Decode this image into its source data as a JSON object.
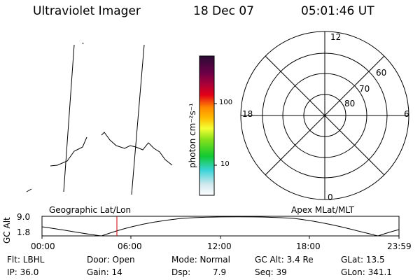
{
  "header": {
    "instrument": "Ultraviolet Imager",
    "date": "18 Dec 07",
    "time": "05:01:46 UT"
  },
  "colorbar": {
    "unit_label": "photon cm⁻²s⁻¹",
    "tick_100": "100",
    "tick_10": "10"
  },
  "polar": {
    "label_12": "12",
    "label_18": "18",
    "label_6": "6",
    "label_0": "0",
    "label_60": "60",
    "label_70": "70",
    "label_80": "80"
  },
  "timeline": {
    "left_title": "Geographic Lat/Lon",
    "right_title": "Apex MLat/MLT",
    "axis_label": "GC Alt",
    "y_tick_high": "9.0",
    "y_tick_low": "1.8",
    "x_ticks": [
      "00:00",
      "06:00",
      "12:00",
      "18:00",
      "23:59"
    ]
  },
  "info": {
    "flt": "Flt: LBHL",
    "ip": "IP: 36.0",
    "door": "Door: Open",
    "gain": "Gain: 14",
    "mode": "Mode: Normal",
    "dsp_label": "Dsp:",
    "dsp_value": "7.9",
    "gc_alt": "GC Alt: 3.4 Re",
    "seq": "Seq: 39",
    "glat": "GLat: 13.5",
    "glon": "GLon: 341.1"
  },
  "colors": {
    "background": "#ffffff",
    "foreground": "#000000",
    "time_marker": "#cc0000"
  }
}
